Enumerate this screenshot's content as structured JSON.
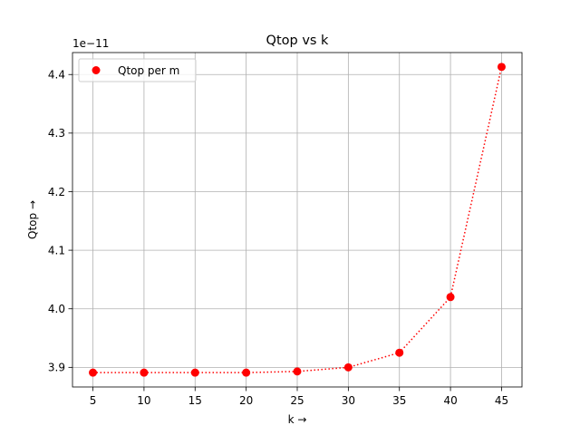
{
  "chart_data": {
    "type": "line",
    "title": "Qtop vs k",
    "xlabel": "k →",
    "ylabel": "Qtop →",
    "y_offset_label": "1e−11",
    "x": [
      5,
      10,
      15,
      20,
      25,
      30,
      35,
      40,
      45
    ],
    "series": [
      {
        "name": "Qtop per m",
        "values": [
          3.891,
          3.891,
          3.891,
          3.891,
          3.893,
          3.9,
          3.925,
          4.02,
          4.413
        ],
        "color": "#ff0000",
        "line_style": "dotted",
        "marker": "circle"
      }
    ],
    "xlim": [
      3,
      47
    ],
    "ylim": [
      3.8665,
      4.4375
    ],
    "xticks": [
      5,
      10,
      15,
      20,
      25,
      30,
      35,
      40,
      45
    ],
    "xtick_labels": [
      "5",
      "10",
      "15",
      "20",
      "25",
      "30",
      "35",
      "40",
      "45"
    ],
    "yticks": [
      3.9,
      4.0,
      4.1,
      4.2,
      4.3,
      4.4
    ],
    "ytick_labels": [
      "3.9",
      "4.0",
      "4.1",
      "4.2",
      "4.3",
      "4.4"
    ],
    "grid": true,
    "grid_color": "#b0b0b0",
    "legend_position": "upper-left"
  }
}
